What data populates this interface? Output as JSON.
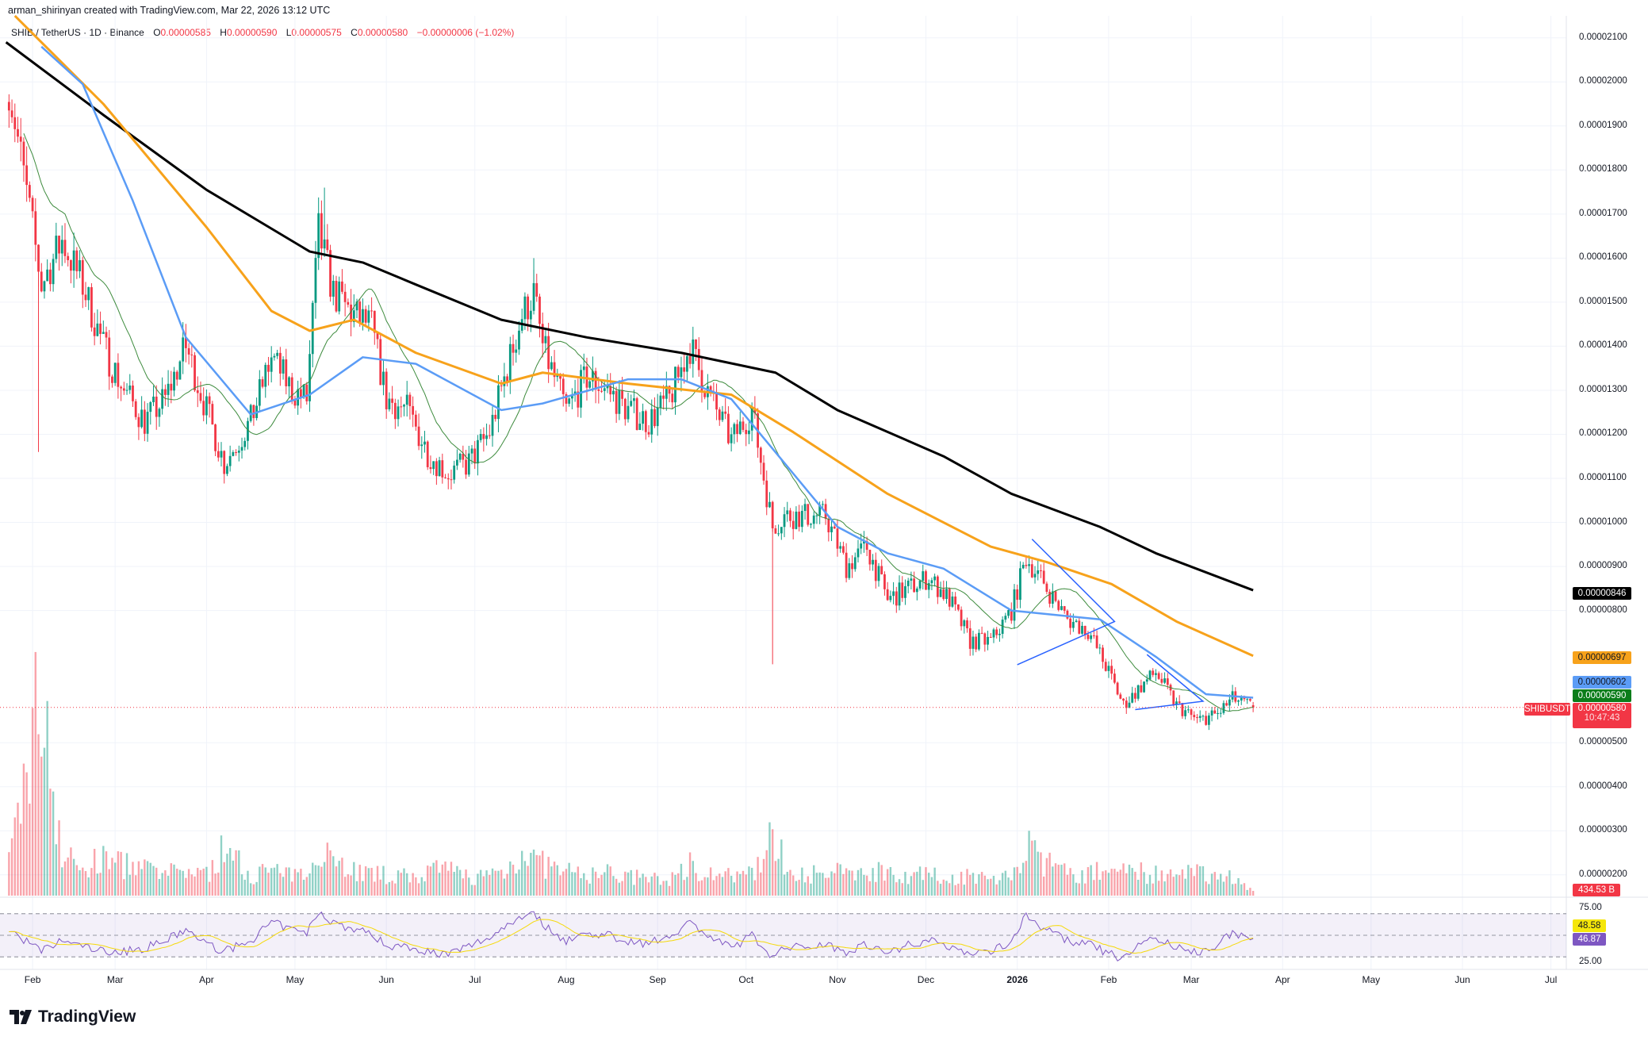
{
  "attribution": "arman_shirinyan created with TradingView.com, Mar 22, 2026 13:12 UTC",
  "legend": {
    "symbol": "SHIB / TetherUS · 1D · Binance",
    "open_label": "O",
    "open": "0.00000585",
    "high_label": "H",
    "high": "0.00000590",
    "low_label": "L",
    "low": "0.00000575",
    "close_label": "C",
    "close": "0.00000580",
    "change": "−0.00000006 (−1.02%)"
  },
  "brand": "TradingView",
  "colors": {
    "up": "#089981",
    "down": "#f23645",
    "ma200": "#000000",
    "ma100": "#f7a21b",
    "ma50": "#5b9cf6",
    "ma20": "#3d8b3d",
    "rsi": "#7e57c2",
    "rsi_ma": "#f5d90a",
    "drawing": "#2962ff"
  },
  "chart_data": {
    "type": "candlestick",
    "title": "",
    "ylim": [
      1.5e-06,
      2.15e-05
    ],
    "grid": true,
    "price_ticks": [
      "0.00002100",
      "0.00002000",
      "0.00001900",
      "0.00001800",
      "0.00001700",
      "0.00001600",
      "0.00001500",
      "0.00001400",
      "0.00001300",
      "0.00001200",
      "0.00001100",
      "0.00001000",
      "0.00000900",
      "0.00000800",
      "0.00000500",
      "0.00000400",
      "0.00000300",
      "0.00000200"
    ],
    "time_ticks": [
      {
        "label": "Feb",
        "date": "2025-02-01"
      },
      {
        "label": "Mar",
        "date": "2025-03-01"
      },
      {
        "label": "Apr",
        "date": "2025-04-01"
      },
      {
        "label": "May",
        "date": "2025-05-01"
      },
      {
        "label": "Jun",
        "date": "2025-06-01"
      },
      {
        "label": "Jul",
        "date": "2025-07-01"
      },
      {
        "label": "Aug",
        "date": "2025-08-01"
      },
      {
        "label": "Sep",
        "date": "2025-09-01"
      },
      {
        "label": "Oct",
        "date": "2025-10-01"
      },
      {
        "label": "Nov",
        "date": "2025-11-01"
      },
      {
        "label": "Dec",
        "date": "2025-12-01"
      },
      {
        "label": "2026",
        "date": "2026-01-01"
      },
      {
        "label": "Feb",
        "date": "2026-02-01"
      },
      {
        "label": "Mar",
        "date": "2026-03-01"
      },
      {
        "label": "Apr",
        "date": "2026-04-01"
      },
      {
        "label": "May",
        "date": "2026-05-01"
      },
      {
        "label": "Jun",
        "date": "2026-06-01"
      },
      {
        "label": "Jul",
        "date": "2026-07-01"
      }
    ],
    "dates": [
      "2025-01-24",
      "2025-02-04",
      "2025-02-11",
      "2025-02-18",
      "2025-02-25",
      "2025-03-04",
      "2025-03-11",
      "2025-03-18",
      "2025-03-25",
      "2025-04-01",
      "2025-04-07",
      "2025-04-16",
      "2025-04-23",
      "2025-04-30",
      "2025-05-05",
      "2025-05-09",
      "2025-05-14",
      "2025-05-21",
      "2025-05-27",
      "2025-06-01",
      "2025-06-08",
      "2025-06-15",
      "2025-06-22",
      "2025-06-29",
      "2025-07-06",
      "2025-07-12",
      "2025-07-17",
      "2025-07-21",
      "2025-07-24",
      "2025-08-01",
      "2025-08-08",
      "2025-08-15",
      "2025-08-22",
      "2025-08-29",
      "2025-09-05",
      "2025-09-12",
      "2025-09-19",
      "2025-09-26",
      "2025-10-03",
      "2025-10-10",
      "2025-10-14",
      "2025-10-21",
      "2025-10-28",
      "2025-11-04",
      "2025-11-11",
      "2025-11-18",
      "2025-11-25",
      "2025-12-02",
      "2025-12-09",
      "2025-12-16",
      "2025-12-23",
      "2025-12-30",
      "2026-01-04",
      "2026-01-11",
      "2026-01-18",
      "2026-01-25",
      "2026-02-01",
      "2026-02-06",
      "2026-02-13",
      "2026-02-17",
      "2026-02-24",
      "2026-03-03",
      "2026-03-10",
      "2026-03-15",
      "2026-03-22"
    ],
    "close": [
      1.995e-05,
      1.54e-05,
      1.64e-05,
      1.54e-05,
      1.4e-05,
      1.3e-05,
      1.23e-05,
      1.28e-05,
      1.4e-05,
      1.255e-05,
      1.135e-05,
      1.23e-05,
      1.375e-05,
      1.3e-05,
      1.28e-05,
      1.66e-05,
      1.52e-05,
      1.47e-05,
      1.445e-05,
      1.28e-05,
      1.255e-05,
      1.16e-05,
      1.11e-05,
      1.135e-05,
      1.205e-05,
      1.35e-05,
      1.47e-05,
      1.52e-05,
      1.4e-05,
      1.255e-05,
      1.33e-05,
      1.3e-05,
      1.255e-05,
      1.23e-05,
      1.28e-05,
      1.4e-05,
      1.28e-05,
      1.185e-05,
      1.255e-05,
      9.9e-06,
      1.015e-05,
      1.015e-05,
      1.015e-05,
      9e-06,
      9.45e-06,
      8.25e-06,
      8.5e-06,
      8.75e-06,
      8.25e-06,
      7.3e-06,
      7.3e-06,
      8e-06,
      9.2e-06,
      8.5e-06,
      7.8e-06,
      7.55e-06,
      6.6e-06,
      5.85e-06,
      6.35e-06,
      6.6e-06,
      5.85e-06,
      5.5e-06,
      5.65e-06,
      6e-06,
      5.8e-06
    ],
    "volume_B": [
      3000,
      20000,
      4000,
      2500,
      3500,
      3000,
      2500,
      2000,
      2500,
      2000,
      4500,
      2000,
      2500,
      1800,
      2000,
      5500,
      3500,
      2500,
      2000,
      2000,
      1800,
      2200,
      2500,
      1800,
      2000,
      2500,
      4500,
      3500,
      3000,
      2200,
      2000,
      2200,
      1800,
      1600,
      1500,
      3000,
      2200,
      1800,
      2000,
      6000,
      3000,
      2200,
      1800,
      2500,
      2200,
      2500,
      2000,
      2000,
      1600,
      2000,
      1500,
      2000,
      4500,
      3000,
      2200,
      2000,
      2500,
      3000,
      2200,
      2000,
      1800,
      2200,
      2000,
      1800,
      434.53
    ],
    "rsi": [
      55,
      35,
      45,
      40,
      35,
      35,
      38,
      45,
      55,
      42,
      35,
      45,
      62,
      55,
      52,
      72,
      62,
      55,
      52,
      40,
      40,
      35,
      32,
      40,
      48,
      60,
      68,
      72,
      60,
      45,
      52,
      50,
      45,
      42,
      50,
      62,
      48,
      38,
      50,
      30,
      38,
      40,
      42,
      35,
      42,
      33,
      42,
      45,
      40,
      33,
      35,
      45,
      68,
      55,
      45,
      42,
      33,
      28,
      45,
      48,
      38,
      34,
      42,
      52,
      46.87
    ],
    "wicks": [
      {
        "date": "2025-02-03",
        "low": 1.16e-05
      },
      {
        "date": "2025-10-10",
        "low": 6.78e-06
      },
      {
        "date": "2025-05-11",
        "high": 1.76e-05
      },
      {
        "date": "2025-07-21",
        "high": 1.6e-05
      }
    ],
    "moving_averages": [
      {
        "key": "ma200",
        "color": "#000000",
        "last": "0.00000846",
        "points": [
          [
            "2025-01-23",
            2.09e-05
          ],
          [
            "2025-02-25",
            1.925e-05
          ],
          [
            "2025-04-01",
            1.755e-05
          ],
          [
            "2025-05-06",
            1.615e-05
          ],
          [
            "2025-05-24",
            1.59e-05
          ],
          [
            "2025-06-11",
            1.54e-05
          ],
          [
            "2025-07-10",
            1.46e-05
          ],
          [
            "2025-08-08",
            1.42e-05
          ],
          [
            "2025-09-09",
            1.385e-05
          ],
          [
            "2025-10-11",
            1.34e-05
          ],
          [
            "2025-11-01",
            1.255e-05
          ],
          [
            "2025-12-07",
            1.15e-05
          ],
          [
            "2025-12-30",
            1.065e-05
          ],
          [
            "2026-01-29",
            9.9e-06
          ],
          [
            "2026-02-17",
            9.3e-06
          ],
          [
            "2026-03-22",
            8.46e-06
          ]
        ]
      },
      {
        "key": "ma100",
        "color": "#f7a21b",
        "last": "0.00000697",
        "points": [
          [
            "2025-01-26",
            2.15e-05
          ],
          [
            "2025-02-04",
            2.09e-05
          ],
          [
            "2025-02-25",
            1.95e-05
          ],
          [
            "2025-04-01",
            1.67e-05
          ],
          [
            "2025-04-23",
            1.48e-05
          ],
          [
            "2025-05-06",
            1.435e-05
          ],
          [
            "2025-05-21",
            1.46e-05
          ],
          [
            "2025-06-11",
            1.385e-05
          ],
          [
            "2025-07-10",
            1.315e-05
          ],
          [
            "2025-07-24",
            1.34e-05
          ],
          [
            "2025-08-22",
            1.315e-05
          ],
          [
            "2025-09-26",
            1.29e-05
          ],
          [
            "2025-10-17",
            1.205e-05
          ],
          [
            "2025-11-18",
            1.065e-05
          ],
          [
            "2025-12-23",
            9.45e-06
          ],
          [
            "2026-01-11",
            9.1e-06
          ],
          [
            "2026-02-02",
            8.6e-06
          ],
          [
            "2026-02-24",
            7.75e-06
          ],
          [
            "2026-03-22",
            6.97e-06
          ]
        ]
      },
      {
        "key": "ma50",
        "color": "#5b9cf6",
        "last": "0.00000602",
        "points": [
          [
            "2025-02-04",
            2.08e-05
          ],
          [
            "2025-02-18",
            1.995e-05
          ],
          [
            "2025-03-07",
            1.73e-05
          ],
          [
            "2025-03-25",
            1.42e-05
          ],
          [
            "2025-04-16",
            1.245e-05
          ],
          [
            "2025-05-06",
            1.29e-05
          ],
          [
            "2025-05-24",
            1.375e-05
          ],
          [
            "2025-06-11",
            1.36e-05
          ],
          [
            "2025-07-10",
            1.255e-05
          ],
          [
            "2025-07-24",
            1.27e-05
          ],
          [
            "2025-08-22",
            1.325e-05
          ],
          [
            "2025-09-09",
            1.325e-05
          ],
          [
            "2025-09-26",
            1.28e-05
          ],
          [
            "2025-10-14",
            1.135e-05
          ],
          [
            "2025-11-01",
            9.9e-06
          ],
          [
            "2025-11-18",
            9.3e-06
          ],
          [
            "2025-12-07",
            8.95e-06
          ],
          [
            "2025-12-30",
            8e-06
          ],
          [
            "2026-01-29",
            7.8e-06
          ],
          [
            "2026-02-17",
            6.95e-06
          ],
          [
            "2026-03-06",
            6.1e-06
          ],
          [
            "2026-03-22",
            6.02e-06
          ]
        ]
      },
      {
        "key": "ma20",
        "color": "#3d8b3d",
        "last": "0.00000590"
      }
    ],
    "drawings": [
      {
        "points": [
          [
            "2026-01-06",
            9.62e-06
          ],
          [
            "2026-02-03",
            7.75e-06
          ],
          [
            "2026-01-01",
            6.77e-06
          ]
        ]
      },
      {
        "points": [
          [
            "2026-02-14",
            7e-06
          ],
          [
            "2026-03-05",
            5.94e-06
          ],
          [
            "2026-02-10",
            5.75e-06
          ]
        ]
      }
    ],
    "last_price": {
      "symbol": "SHIBUSDT",
      "value": "0.00000580",
      "countdown": "10:47:43"
    },
    "volume_last": "434.53 B",
    "rsi_axis": [
      "75.00",
      "25.00"
    ],
    "rsi_ma_value": "48.58",
    "rsi_value": "46.87"
  }
}
